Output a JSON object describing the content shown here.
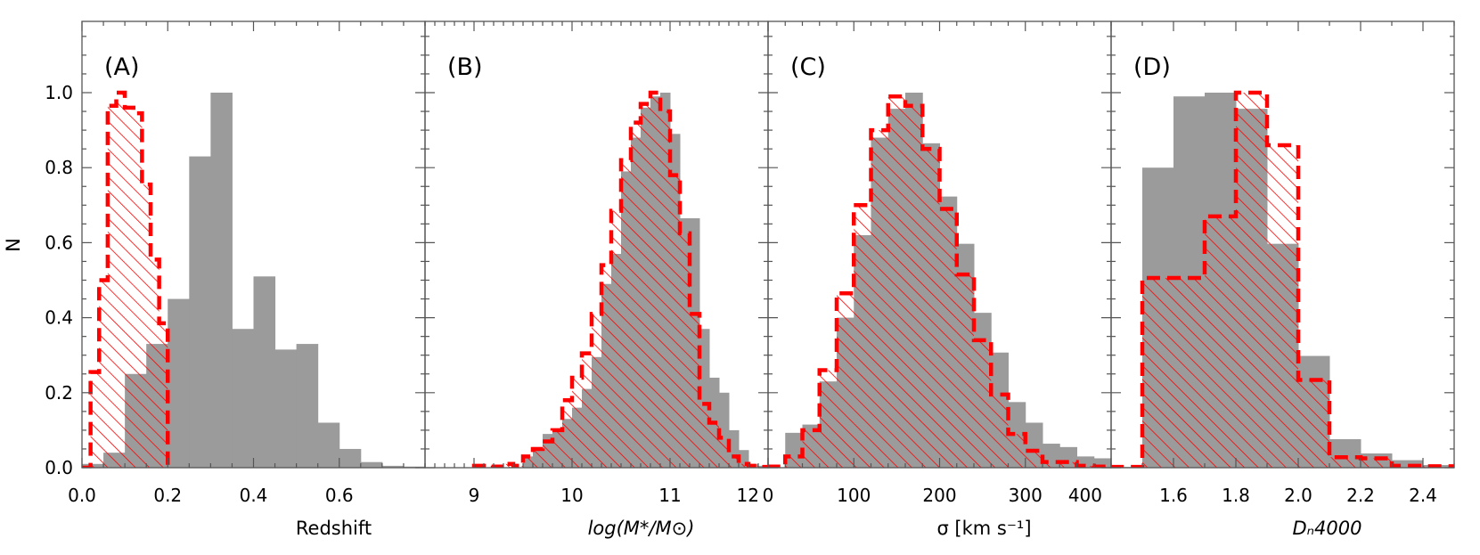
{
  "ylabel": "N",
  "colors": {
    "gray_fill": "#9b9b9b",
    "red": "#ff0000",
    "axis": "#555555"
  },
  "y_ticks": [
    "0.0",
    "0.2",
    "0.4",
    "0.6",
    "0.8",
    "1.0"
  ],
  "chart_data": [
    {
      "type": "bar",
      "panel": "(A)",
      "xlabel": "Redshift",
      "xlim": [
        0,
        0.8
      ],
      "ylim": [
        0,
        1.19
      ],
      "x_ticks": [
        0.0,
        0.2,
        0.4,
        0.6
      ],
      "x_tick_labels": [
        "0.0",
        "0.2",
        "0.4",
        "0.6"
      ],
      "minor_step": 0.05,
      "series": [
        {
          "style": "gray-filled",
          "bin_start": 0,
          "bin_width": 0.05,
          "values": [
            0.01,
            0.04,
            0.25,
            0.33,
            0.45,
            0.83,
            1.0,
            0.37,
            0.51,
            0.315,
            0.33,
            0.12,
            0.05,
            0.015,
            0.005,
            0.003
          ]
        },
        {
          "style": "red-hatched-dashed",
          "bin_start": 0,
          "bin_width": 0.02,
          "values": [
            0,
            0.255,
            0.5,
            0.965,
            1.0,
            0.96,
            0.945,
            0.755,
            0.555,
            0.385
          ]
        }
      ]
    },
    {
      "type": "bar",
      "panel": "(B)",
      "xlabel": "log(M*/M⊙)",
      "xlim": [
        8.5,
        12.0
      ],
      "ylim": [
        0,
        1.19
      ],
      "x_ticks": [
        9,
        10,
        11,
        12
      ],
      "x_tick_labels": [
        "9",
        "10",
        "11",
        "12"
      ],
      "minor_step": 0.1,
      "series": [
        {
          "style": "gray-filled",
          "bin_start": 9.5,
          "bin_width": 0.1,
          "values": [
            0.03,
            0.055,
            0.09,
            0.095,
            0.13,
            0.16,
            0.21,
            0.295,
            0.49,
            0.57,
            0.79,
            0.88,
            0.96,
            0.99,
            1.0,
            0.89,
            0.665,
            0.665,
            0.37,
            0.24,
            0.2,
            0.1,
            0.047,
            0.01,
            0.005
          ]
        },
        {
          "style": "red-hatched-dashed",
          "bin_start": 9.0,
          "bin_width": 0.1,
          "values": [
            0.005,
            0,
            0.003,
            0.01,
            0.005,
            0.03,
            0.05,
            0.07,
            0.1,
            0.18,
            0.24,
            0.305,
            0.41,
            0.54,
            0.685,
            0.82,
            0.92,
            0.97,
            1.0,
            0.95,
            0.78,
            0.625,
            0.41,
            0.17,
            0.12,
            0.08,
            0.03,
            0.01,
            0.005,
            0.002
          ]
        }
      ]
    },
    {
      "type": "bar",
      "panel": "(C)",
      "xlabel": "σ [km s⁻¹]",
      "xlim": [
        0,
        400
      ],
      "ylim": [
        0,
        1.19
      ],
      "x_ticks": [
        0,
        100,
        200,
        300,
        400
      ],
      "x_tick_labels": [
        "0",
        "100",
        "200",
        "300",
        "400"
      ],
      "minor_step": 20,
      "series": [
        {
          "style": "gray-filled",
          "bin_start": 0,
          "bin_width": 20,
          "values": [
            0,
            0.093,
            0.115,
            0.23,
            0.4,
            0.62,
            0.88,
            0.957,
            1.0,
            0.865,
            0.723,
            0.597,
            0.413,
            0.307,
            0.175,
            0.12,
            0.064,
            0.055,
            0.03,
            0.025
          ]
        },
        {
          "style": "red-hatched-dashed",
          "bin_start": 0,
          "bin_width": 20,
          "values": [
            0.003,
            0.03,
            0.1,
            0.26,
            0.465,
            0.7,
            0.9,
            0.99,
            0.965,
            0.85,
            0.69,
            0.515,
            0.34,
            0.195,
            0.09,
            0.045,
            0.015,
            0.015,
            0.005,
            0.003
          ]
        }
      ]
    },
    {
      "type": "bar",
      "panel": "(D)",
      "xlabel": "Dₙ4000",
      "xlim": [
        1.4,
        2.5
      ],
      "ylim": [
        0,
        1.19
      ],
      "x_ticks": [
        1.6,
        1.8,
        2.0,
        2.2,
        2.4
      ],
      "x_tick_labels": [
        "1.6",
        "1.8",
        "2.0",
        "2.2",
        "2.4"
      ],
      "minor_step": 0.1,
      "series": [
        {
          "style": "gray-filled",
          "bin_start": 1.4,
          "bin_width": 0.1,
          "values": [
            0.002,
            0.8,
            0.99,
            1.0,
            0.957,
            0.597,
            0.298,
            0.076,
            0.038,
            0.02,
            0.007
          ]
        },
        {
          "style": "red-hatched-dashed",
          "bin_start": 1.4,
          "bin_width": 0.1,
          "values": [
            0.002,
            0.506,
            0.506,
            0.67,
            1.0,
            0.86,
            0.234,
            0.028,
            0.025,
            0.005,
            0.004
          ]
        }
      ]
    }
  ]
}
